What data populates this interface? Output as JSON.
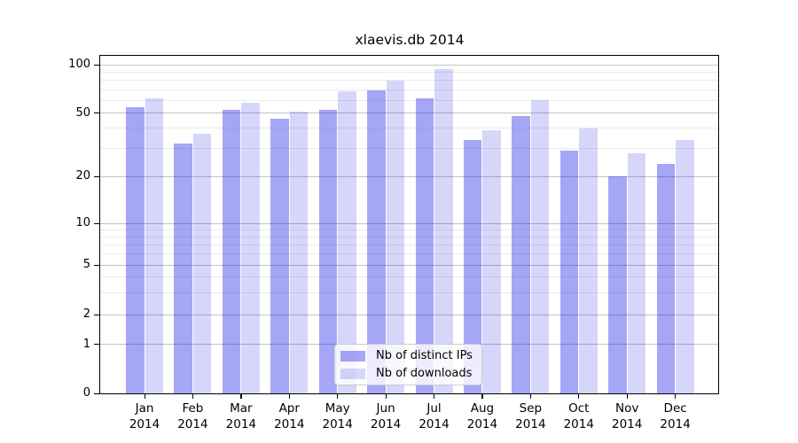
{
  "title": "xlaevis.db 2014",
  "chart_data": {
    "type": "bar",
    "title": "xlaevis.db 2014",
    "categories": [
      "Jan 2014",
      "Feb 2014",
      "Mar 2014",
      "Apr 2014",
      "May 2014",
      "Jun 2014",
      "Jul 2014",
      "Aug 2014",
      "Sep 2014",
      "Oct 2014",
      "Nov 2014",
      "Dec 2014"
    ],
    "months": [
      "Jan",
      "Feb",
      "Mar",
      "Apr",
      "May",
      "Jun",
      "Jul",
      "Aug",
      "Sep",
      "Oct",
      "Nov",
      "Dec"
    ],
    "year": "2014",
    "series": [
      {
        "name": "Nb of distinct IPs",
        "color": "rgba(0,0,230,0.35)",
        "values": [
          54,
          32,
          52,
          46,
          52,
          69,
          62,
          34,
          48,
          29,
          20,
          24
        ]
      },
      {
        "name": "Nb of downloads",
        "color": "rgba(0,0,230,0.16)",
        "values": [
          62,
          37,
          58,
          51,
          68,
          80,
          94,
          39,
          60,
          40,
          28,
          34
        ]
      }
    ],
    "xlabel": "",
    "ylabel": "",
    "yscale": "symlog",
    "y_ticks": [
      0,
      1,
      2,
      5,
      10,
      20,
      50,
      100
    ],
    "y_minor_ticks": [
      3,
      4,
      6,
      7,
      8,
      9,
      30,
      40,
      60,
      70,
      80,
      90
    ],
    "ylim": [
      0,
      115
    ],
    "grid": "both",
    "legend": {
      "position": "lower center",
      "labels": [
        "Nb of distinct IPs",
        "Nb of downloads"
      ]
    }
  },
  "colors": {
    "bar_distinct_ips": "rgba(0,0,230,0.35)",
    "bar_downloads": "rgba(0,0,230,0.16)",
    "grid_major": "#c3c3c3",
    "grid_minor": "#ebebeb",
    "spine": "#000000",
    "text": "#000000",
    "legend_border": "#cccccc",
    "legend_bg": "rgba(255,255,255,0.8)"
  }
}
